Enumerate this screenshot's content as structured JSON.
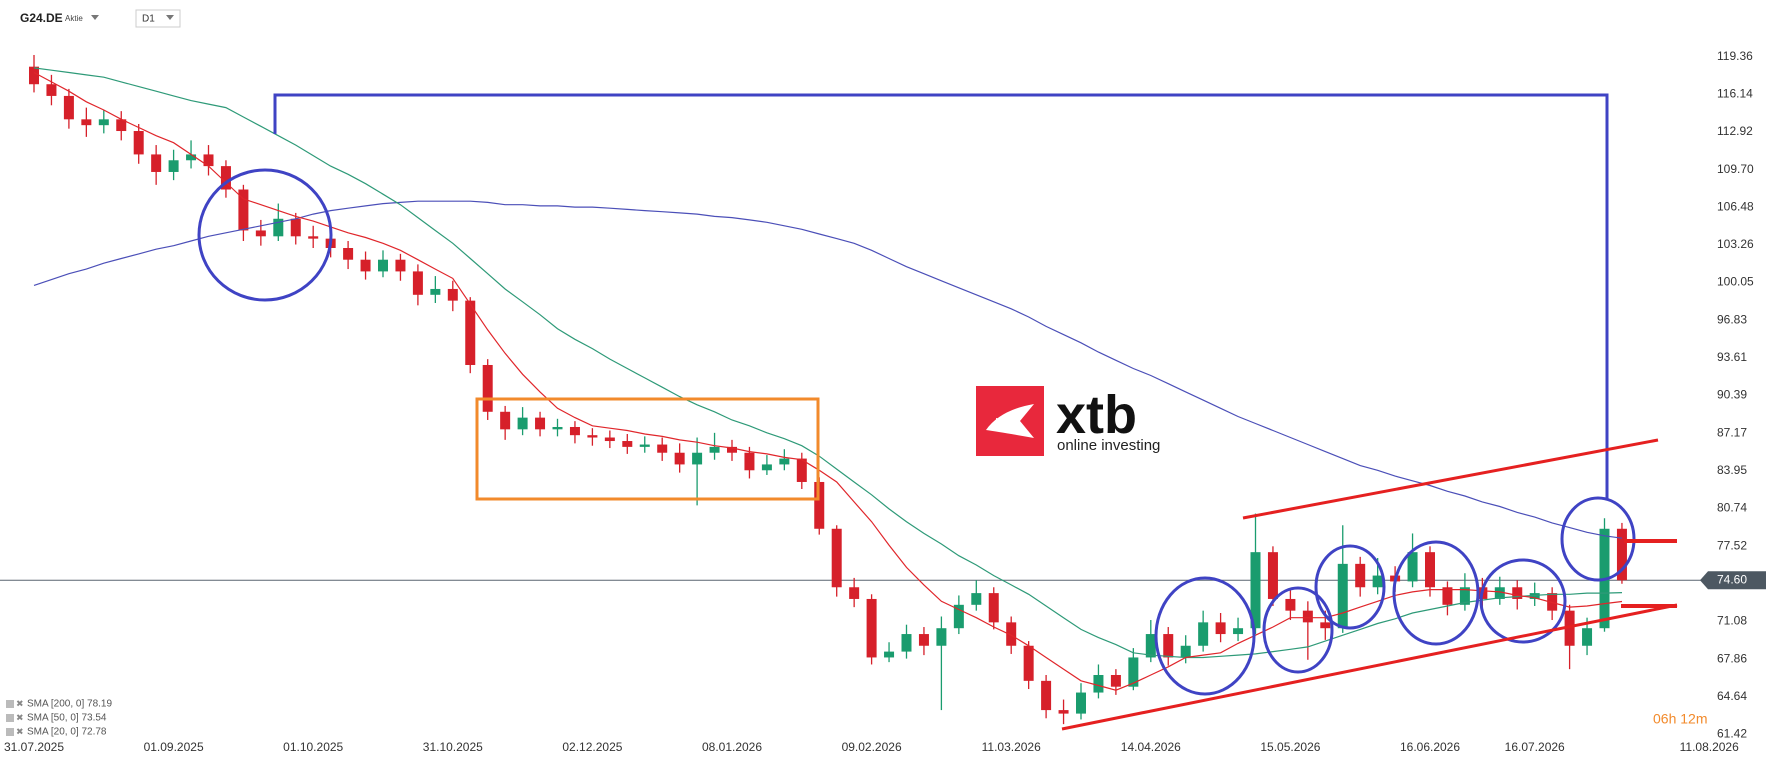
{
  "header": {
    "symbol": "G24.DE",
    "kind": "Aktie",
    "timeframe": "D1"
  },
  "watermark": {
    "brand": "xtb",
    "tagline": "online investing"
  },
  "countdown": "06h 12m",
  "chart_data": {
    "type": "candlestick",
    "categories": [
      "31.07.2025",
      null,
      null,
      null,
      null,
      null,
      null,
      null,
      "01.09.2025",
      null,
      null,
      null,
      null,
      null,
      null,
      null,
      "01.10.2025",
      null,
      null,
      null,
      null,
      null,
      null,
      null,
      "31.10.2025",
      null,
      null,
      null,
      null,
      null,
      null,
      null,
      "02.12.2025",
      null,
      null,
      null,
      null,
      null,
      null,
      null,
      "08.01.2026",
      null,
      null,
      null,
      null,
      null,
      null,
      null,
      "09.02.2026",
      null,
      null,
      null,
      null,
      null,
      null,
      null,
      "11.03.2026",
      null,
      null,
      null,
      null,
      null,
      null,
      null,
      "14.04.2026",
      null,
      null,
      null,
      null,
      null,
      null,
      null,
      "15.05.2026",
      null,
      null,
      null,
      null,
      null,
      null,
      null,
      "16.06.2026",
      null,
      null,
      null,
      null,
      null,
      "16.07.2026",
      null,
      null,
      null,
      null,
      null,
      null,
      null,
      null,
      null,
      "11.08.2026"
    ],
    "open": [
      118.5,
      117,
      116,
      114,
      113.5,
      114,
      113,
      111,
      109.5,
      110.5,
      111,
      110,
      108,
      104.5,
      104,
      105.5,
      104,
      103.8,
      103,
      102,
      101,
      102,
      101,
      99,
      99.5,
      98.5,
      93,
      89,
      87.5,
      88.5,
      87.5,
      87.7,
      87,
      86.8,
      86.5,
      86,
      86.2,
      85.5,
      84.5,
      85.5,
      86,
      85.5,
      84,
      84.5,
      85,
      83,
      79,
      74,
      73,
      68,
      68.5,
      70,
      69,
      70.5,
      72.5,
      73.5,
      71,
      69,
      66,
      63.5,
      63.2,
      65,
      66.5,
      65.5,
      68,
      70,
      68,
      69,
      71,
      70,
      70.5,
      77,
      73,
      72,
      71,
      70.5,
      76,
      74,
      75,
      74.5,
      77,
      74,
      72.5,
      74,
      73,
      74,
      73,
      73.5,
      72,
      69,
      70.5,
      79,
      null,
      null,
      null,
      null,
      null
    ],
    "high": [
      119.5,
      117.8,
      116.6,
      115,
      114.8,
      114.7,
      113.6,
      111.8,
      111.4,
      112.2,
      111.8,
      110.5,
      108.4,
      105.4,
      106.8,
      106,
      104.9,
      104.5,
      103.6,
      102.7,
      102.8,
      102.5,
      101.6,
      100.6,
      100.2,
      98.8,
      93.5,
      89.5,
      89.4,
      89,
      88.4,
      88.2,
      87.6,
      87.4,
      87.1,
      86.9,
      86.8,
      86.3,
      86.8,
      87.2,
      86.6,
      86,
      85.3,
      85.8,
      85.5,
      83.4,
      79.3,
      74.8,
      73.4,
      69.3,
      70.8,
      70.6,
      71.5,
      73.3,
      74.6,
      74,
      71.5,
      69.4,
      66.5,
      64.4,
      65.8,
      67.4,
      67,
      68.8,
      71.2,
      70.6,
      69.9,
      72,
      71.8,
      71.4,
      80.3,
      77.5,
      73.9,
      72.8,
      72,
      79.3,
      76.6,
      76.5,
      75.8,
      78.6,
      77.5,
      74.5,
      75.2,
      74.8,
      74.9,
      74.6,
      74.4,
      74,
      72.5,
      71.4,
      79.9,
      79.5,
      null,
      null,
      null,
      null,
      null
    ],
    "low": [
      116.3,
      115.2,
      113.2,
      112.5,
      112.8,
      112.2,
      110.2,
      108.4,
      108.8,
      109.8,
      109.2,
      107.3,
      103.6,
      103.2,
      103.6,
      103.3,
      103,
      102.2,
      101.2,
      100.3,
      100.5,
      100.2,
      98.1,
      98.3,
      97.6,
      92.3,
      88.3,
      86.6,
      87,
      86.9,
      86.9,
      86.3,
      86.1,
      85.9,
      85.4,
      85.5,
      84.8,
      83.8,
      81,
      84.9,
      84.8,
      83.3,
      83.6,
      84,
      82.4,
      78.5,
      73.2,
      72.3,
      67.4,
      67.6,
      67.9,
      68.2,
      63.5,
      70,
      72,
      70.4,
      68.3,
      65.3,
      62.8,
      62.3,
      62.7,
      64.5,
      64.8,
      65.2,
      67.6,
      67.3,
      67.5,
      68.5,
      69.3,
      69.4,
      70,
      72.4,
      71.2,
      67.8,
      69.5,
      70.1,
      73.2,
      73.4,
      73.6,
      74,
      73.2,
      71.6,
      72,
      72.2,
      72.5,
      72.1,
      72.4,
      71.2,
      67,
      68.2,
      70.2,
      74.3,
      null,
      null,
      null,
      null,
      null
    ],
    "close": [
      117,
      116,
      114,
      113.5,
      114,
      113,
      111,
      109.5,
      110.5,
      111,
      110,
      108,
      104.5,
      104,
      105.5,
      104,
      103.8,
      103,
      102,
      101,
      102,
      101,
      99,
      99.5,
      98.5,
      93,
      89,
      87.5,
      88.5,
      87.5,
      87.7,
      87,
      86.8,
      86.5,
      86,
      86.2,
      85.5,
      84.5,
      85.5,
      86,
      85.5,
      84,
      84.5,
      85,
      83,
      79,
      74,
      73,
      68,
      68.5,
      70,
      69,
      70.5,
      72.5,
      73.5,
      71,
      69,
      66,
      63.5,
      63.2,
      65,
      66.5,
      65.5,
      68,
      70,
      68,
      69,
      71,
      70,
      70.5,
      77,
      73,
      72,
      71,
      70.5,
      76,
      74,
      75,
      74.5,
      77,
      74,
      72.5,
      74,
      73,
      74,
      73,
      73.5,
      72,
      69,
      70.5,
      79,
      74.6,
      null,
      null,
      null,
      null,
      null
    ],
    "up_color": "#1a9c6e",
    "down_color": "#d6202a",
    "series": [
      {
        "name": "SMA [200, 0] 78.19",
        "color": "#4b4fb8",
        "values": [
          99.8,
          100.3,
          100.8,
          101.2,
          101.7,
          102.1,
          102.5,
          102.9,
          103.2,
          103.6,
          104,
          104.3,
          104.6,
          104.9,
          105.2,
          105.5,
          105.9,
          106.2,
          106.4,
          106.6,
          106.8,
          106.9,
          107,
          107,
          107,
          107,
          106.9,
          106.7,
          106.7,
          106.6,
          106.6,
          106.5,
          106.5,
          106.4,
          106.3,
          106.2,
          106.1,
          106,
          105.9,
          105.7,
          105.6,
          105.4,
          105.2,
          104.9,
          104.6,
          104.2,
          103.8,
          103.4,
          102.8,
          102.1,
          101.4,
          100.8,
          100.2,
          99.6,
          99,
          98.4,
          97.8,
          97.1,
          96.3,
          95.6,
          94.9,
          94.1,
          93.4,
          92.7,
          92.1,
          91.4,
          90.7,
          90,
          89.3,
          88.6,
          88,
          87.4,
          86.8,
          86.2,
          85.6,
          85,
          84.4,
          84,
          83.5,
          83.1,
          82.7,
          82.2,
          81.8,
          81.3,
          80.9,
          80.4,
          80,
          79.5,
          79.1,
          78.7,
          78.4,
          78.19,
          null,
          null,
          null,
          null,
          null
        ]
      },
      {
        "name": "SMA [50, 0] 73.54",
        "color": "#2e9a78",
        "values": [
          118.4,
          118.2,
          118,
          117.8,
          117.6,
          117.2,
          116.8,
          116.4,
          116,
          115.6,
          115.3,
          115,
          114.2,
          113.4,
          112.6,
          111.8,
          110.9,
          110,
          109.3,
          108.5,
          107.6,
          106.7,
          105.6,
          104.5,
          103.4,
          102.1,
          100.8,
          99.5,
          98.4,
          97.3,
          96.1,
          95.2,
          94.4,
          93.5,
          92.7,
          91.9,
          91.1,
          90.3,
          89.6,
          89,
          88.3,
          87.8,
          87.2,
          86.7,
          86.1,
          85.2,
          84.1,
          83,
          81.9,
          80.7,
          79.6,
          78.6,
          77.7,
          76.7,
          75.9,
          75,
          74.2,
          73.4,
          72.4,
          71.4,
          70.4,
          69.7,
          69.1,
          68.4,
          68.2,
          68.1,
          68,
          68,
          68.1,
          68.2,
          68.3,
          68.5,
          68.7,
          68.9,
          69.4,
          69.9,
          70.4,
          70.9,
          71.3,
          71.8,
          72.1,
          72.4,
          72.7,
          72.9,
          73.1,
          73.2,
          73.3,
          73.4,
          73.4,
          73.5,
          73.5,
          73.54,
          null,
          null,
          null,
          null,
          null
        ]
      },
      {
        "name": "SMA [20, 0] 72.78",
        "color": "#e0262b",
        "values": [
          118,
          117.2,
          116.4,
          115.5,
          114.8,
          114,
          113.3,
          112.6,
          112,
          111,
          110,
          108.6,
          107.2,
          106.7,
          106.2,
          105.7,
          105.3,
          104.8,
          104.3,
          103.9,
          103.4,
          102.8,
          102,
          101.2,
          100.4,
          98.2,
          96,
          94,
          92.2,
          90.7,
          89.3,
          88.5,
          87.8,
          87.6,
          87.4,
          87.1,
          86.9,
          86.6,
          86.4,
          86.1,
          85.9,
          85.6,
          85.4,
          85.1,
          84.9,
          84,
          83,
          81.3,
          79.6,
          77.6,
          75.7,
          74.2,
          72.8,
          72.1,
          71.4,
          70.6,
          69.9,
          69,
          68,
          67,
          66,
          65.6,
          65.2,
          65.8,
          66.5,
          67.2,
          68,
          68.2,
          68.4,
          69.2,
          69.9,
          70.6,
          71.4,
          71.4,
          71.4,
          71.8,
          72.3,
          72.8,
          73.3,
          73.6,
          73.8,
          73.8,
          73.8,
          73.7,
          73.6,
          73.3,
          73.1,
          72.7,
          72.3,
          72.4,
          72.6,
          72.78,
          null,
          null,
          null,
          null,
          null
        ]
      }
    ],
    "last_price": {
      "value": 74.6,
      "label": "74.60"
    },
    "ylim": [
      61.2,
      124.2
    ],
    "yticks": [
      61.42,
      64.64,
      67.86,
      71.08,
      77.52,
      80.74,
      83.95,
      87.17,
      90.39,
      93.61,
      96.83,
      100.05,
      103.26,
      106.48,
      {
        "value": 109.7,
        "label": "109.70"
      },
      112.92,
      116.14,
      119.36
    ],
    "grid": false
  }
}
